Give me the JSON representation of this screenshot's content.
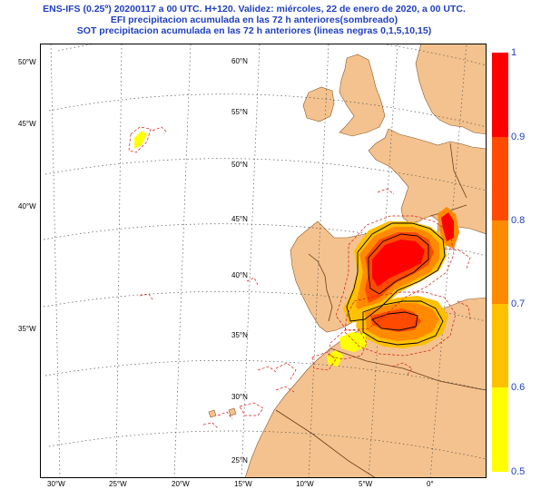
{
  "header": {
    "line1": "ENS-IFS (0.25º) 20200117 a 00 UTC.  H+120. Validez: miércoles, 22 de enero de 2020,  a  00 UTC.",
    "line2": "EFI precipitacion acumulada en las 72 h anteriores(sombreado)",
    "line3": "SOT precipitacion acumulada en las 72 h anteriores (lineas negras 0,1,5,10,15)"
  },
  "map": {
    "lat_labels": [
      "60°N",
      "55°N",
      "50°N",
      "45°N",
      "40°N",
      "35°N",
      "30°N",
      "25°N"
    ],
    "lon_labels_left": [
      "50°W",
      "45°W",
      "40°W",
      "35°W"
    ],
    "lon_labels_bottom": [
      "30°W",
      "25°W",
      "20°W",
      "15°W",
      "10°W",
      "5°W",
      "0°"
    ],
    "colors": {
      "land": "#f4c28e",
      "sea": "#ffffff",
      "grid": "#555555",
      "border": "#6b3c1a",
      "sot_dashed": "#d11a1a"
    }
  },
  "colorbar": {
    "labels": [
      "1",
      "0.9",
      "0.8",
      "0.7",
      "0.6",
      "0.5"
    ],
    "colors": [
      "#ff0000",
      "#ff4a00",
      "#ff8a00",
      "#ffc000",
      "#ffff00"
    ]
  }
}
